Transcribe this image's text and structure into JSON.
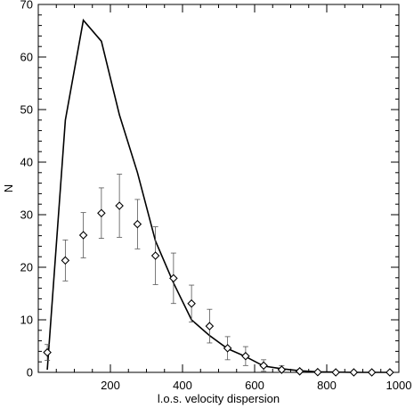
{
  "chart_data": {
    "type": "line",
    "title": "",
    "xlabel": "l.o.s. velocity dispersion",
    "ylabel": "N",
    "xlim": [
      0,
      1000
    ],
    "ylim": [
      0,
      70
    ],
    "x_major_ticks": [
      200,
      400,
      600,
      800,
      1000
    ],
    "x_minor_step": 50,
    "y_major_ticks": [
      0,
      10,
      20,
      30,
      40,
      50,
      60,
      70
    ],
    "y_minor_step": 2,
    "grid": false,
    "legend": "none",
    "colors": {
      "line": "#000000",
      "marker": "#000000",
      "errorbar": "#555555"
    },
    "series": [
      {
        "kind": "line",
        "x": [
          25,
          75,
          125,
          175,
          225,
          275,
          325,
          375,
          425,
          475,
          525,
          575,
          625,
          675,
          725,
          775,
          825,
          875,
          925,
          975
        ],
        "y": [
          0.5,
          48,
          67,
          63,
          49,
          38,
          25,
          17,
          10,
          7,
          4.5,
          3,
          1.2,
          0.7,
          0.3,
          0.1,
          0.05,
          0,
          0,
          0
        ]
      },
      {
        "kind": "scatter",
        "marker": "diamond",
        "x": [
          25,
          75,
          125,
          175,
          225,
          275,
          325,
          375,
          425,
          475,
          525,
          575,
          625,
          675,
          725,
          775,
          825,
          875,
          925,
          975
        ],
        "y": [
          3.8,
          21.3,
          26.1,
          30.3,
          31.7,
          28.2,
          22.2,
          17.9,
          13.1,
          8.8,
          4.6,
          3.1,
          1.3,
          0.5,
          0.2,
          0.05,
          0,
          0,
          0,
          0
        ],
        "yerr": [
          1.5,
          3.9,
          4.3,
          4.8,
          6.0,
          4.7,
          5.5,
          4.8,
          3.5,
          3.2,
          2.2,
          1.8,
          1.1,
          0.8,
          0.4,
          0.2,
          0.1,
          0.1,
          0.1,
          0.1
        ]
      }
    ]
  }
}
